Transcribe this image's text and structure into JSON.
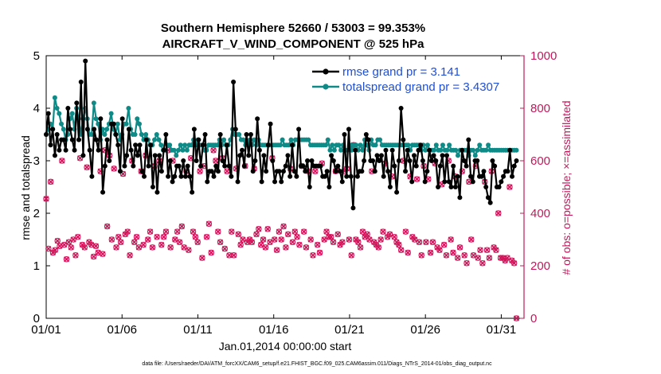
{
  "chart_data": {
    "type": "line",
    "title": "Southern Hemisphere 52660 / 53003 = 99.353%",
    "subtitle": "AIRCRAFT_V_WIND_COMPONENT @ 525 hPa",
    "xlabel": "Jan.01,2014 00:00:00 start",
    "ylabel_left": "rmse and totalspread",
    "ylabel_right": "# of obs: o=possible; ×=assimilated",
    "footnote": "data file: /Users/raeder/DAI/ATM_forcXX/CAM6_setup/f.e21.FHIST_BGC.f09_025.CAM6assim.011/Diags_NTrS_2014-01/obs_diag_output.nc",
    "x_range": [
      1,
      32.5
    ],
    "x_ticks": [
      1,
      6,
      11,
      16,
      21,
      26,
      31
    ],
    "x_tick_labels": [
      "01/01",
      "01/06",
      "01/11",
      "01/16",
      "01/21",
      "01/26",
      "01/31"
    ],
    "ylim_left": [
      0,
      5
    ],
    "left_ticks": [
      "0",
      "1",
      "2",
      "3",
      "4",
      "5"
    ],
    "ylim_right": [
      0,
      1000
    ],
    "right_ticks": [
      "0",
      "200",
      "400",
      "600",
      "800",
      "1000"
    ],
    "legend": [
      "rmse grand pr = 3.141",
      "totalspread grand pr = 3.4307"
    ],
    "colors": {
      "rmse": "#000000",
      "spread": "#0e8a87",
      "obs": "#d4145a",
      "legend_text": "#1f4fd6",
      "right_axis": "#c2185b"
    },
    "series": [
      {
        "name": "rmse",
        "values": [
          3.5,
          3.9,
          3.3,
          3.6,
          3.1,
          3.5,
          3.2,
          3.4,
          3.4,
          3.2,
          4.0,
          3.6,
          3.4,
          3.2,
          4.1,
          3.4,
          4.5,
          3.1,
          4.9,
          3.6,
          3.2,
          2.7,
          3.6,
          3.4,
          3.2,
          3.8,
          2.4,
          2.9,
          3.4,
          3.0,
          3.7,
          3.7,
          3.5,
          3.3,
          2.8,
          3.8,
          2.9,
          3.1,
          3.6,
          3.2,
          2.9,
          3.3,
          3.1,
          3.3,
          2.8,
          2.7,
          3.4,
          2.9,
          3.3,
          2.5,
          3.1,
          2.4,
          3.1,
          2.8,
          3.2,
          3.5,
          2.7,
          3.0,
          2.6,
          2.7,
          2.9,
          2.9,
          2.7,
          3.0,
          2.7,
          2.9,
          2.7,
          2.4,
          3.6,
          3.0,
          3.4,
          2.9,
          3.3,
          3.5,
          2.6,
          2.8,
          2.8,
          2.7,
          2.9,
          2.8,
          3.5,
          3.0,
          2.9,
          3.3,
          2.9,
          2.7,
          4.5,
          3.6,
          2.6,
          3.1,
          3.2,
          2.9,
          3.5,
          3.1,
          3.5,
          2.8,
          3.0,
          3.8,
          3.2,
          2.6,
          3.1,
          2.8,
          3.3,
          3.7,
          3.0,
          2.6,
          2.8,
          2.8,
          2.6,
          2.8,
          2.9,
          3.1,
          2.7,
          3.3,
          2.8,
          2.7,
          3.6,
          2.9,
          2.9,
          2.8,
          3.0,
          2.5,
          3.0,
          2.9,
          2.9,
          2.9,
          2.9,
          2.7,
          2.7,
          2.8,
          2.5,
          3.1,
          3.0,
          2.8,
          2.9,
          2.8,
          2.6,
          3.5,
          2.7,
          3.6,
          2.7,
          2.1,
          3.2,
          2.7,
          2.8,
          2.8,
          3.0,
          3.5,
          3.4,
          3.0,
          3.0,
          2.8,
          3.1,
          3.0,
          3.1,
          2.7,
          3.2,
          2.8,
          2.5,
          3.2,
          2.9,
          2.4,
          3.0,
          4.0,
          3.4,
          2.8,
          3.2,
          3.0,
          2.6,
          3.1,
          2.9,
          3.2,
          3.3,
          3.0,
          2.6,
          2.8,
          3.2,
          3.0,
          3.1,
          3.0,
          2.5,
          2.9,
          3.1,
          2.6,
          3.1,
          2.6,
          2.5,
          2.9,
          2.5,
          2.7,
          2.3,
          3.2,
          3.0,
          2.9,
          3.4,
          2.7,
          2.6,
          3.0,
          3.0,
          2.7,
          2.7,
          2.8,
          2.5,
          2.3,
          2.2,
          3.0,
          2.9,
          2.5,
          2.5,
          2.6,
          2.7,
          2.8,
          2.8,
          3.2,
          2.7,
          2.9,
          3.0
        ]
      },
      {
        "name": "totalspread",
        "values": [
          3.5,
          3.6,
          3.7,
          3.6,
          4.2,
          4.0,
          3.9,
          3.7,
          3.6,
          3.4,
          3.5,
          3.8,
          3.9,
          3.6,
          4.0,
          3.8,
          3.5,
          3.8,
          4.0,
          3.8,
          3.5,
          3.5,
          4.1,
          3.8,
          3.7,
          3.4,
          3.6,
          3.5,
          3.6,
          3.7,
          3.9,
          3.6,
          3.5,
          3.7,
          3.4,
          3.5,
          3.7,
          3.7,
          4.0,
          3.6,
          3.5,
          3.5,
          3.8,
          3.7,
          3.5,
          3.4,
          3.5,
          3.4,
          3.3,
          3.3,
          3.4,
          3.5,
          3.4,
          3.3,
          3.2,
          3.2,
          3.3,
          3.3,
          3.2,
          3.2,
          3.1,
          3.2,
          3.3,
          3.2,
          3.3,
          3.2,
          3.3,
          3.3,
          3.4,
          3.3,
          3.4,
          3.3,
          3.3,
          3.2,
          3.2,
          3.3,
          3.3,
          3.3,
          3.3,
          3.3,
          3.4,
          3.3,
          3.4,
          3.3,
          3.3,
          3.4,
          3.6,
          3.5,
          3.5,
          3.5,
          3.4,
          3.4,
          3.3,
          3.3,
          3.4,
          3.3,
          3.4,
          3.3,
          3.4,
          3.3,
          3.3,
          3.3,
          3.3,
          3.3,
          3.3,
          3.3,
          3.3,
          3.3,
          3.3,
          3.4,
          3.3,
          3.3,
          3.3,
          3.4,
          3.3,
          3.4,
          3.4,
          3.4,
          3.4,
          3.4,
          3.4,
          3.4,
          3.3,
          3.3,
          3.3,
          3.3,
          3.3,
          3.3,
          3.3,
          3.3,
          3.4,
          3.2,
          3.3,
          3.2,
          3.3,
          3.3,
          3.2,
          3.3,
          3.2,
          3.2,
          3.3,
          3.2,
          3.3,
          3.3,
          3.2,
          3.3,
          3.2,
          3.4,
          3.3,
          3.2,
          3.4,
          3.3,
          3.3,
          3.4,
          3.4,
          3.3,
          3.3,
          3.3,
          3.3,
          3.3,
          3.3,
          3.3,
          3.3,
          3.3,
          3.3,
          3.3,
          3.3,
          3.3,
          3.2,
          3.3,
          3.3,
          3.3,
          3.3,
          3.2,
          3.3,
          3.2,
          3.3,
          3.2,
          3.2,
          3.2,
          3.3,
          3.2,
          3.2,
          3.3,
          3.2,
          3.2,
          3.3,
          3.2,
          3.2,
          3.2,
          3.1,
          3.2,
          3.2,
          3.2,
          3.2,
          3.1,
          3.2,
          3.2,
          3.1,
          3.2,
          3.3,
          3.2,
          3.2,
          3.2,
          3.3,
          3.2,
          3.2,
          3.2,
          3.2,
          3.2,
          3.2,
          3.2,
          3.2,
          3.2,
          3.2,
          3.2,
          3.2,
          3.2
        ]
      },
      {
        "name": "obs_assimilated",
        "values": [
          455,
          265,
          520,
          250,
          260,
          295,
          275,
          600,
          280,
          225,
          290,
          270,
          300,
          240,
          310,
          610,
          280,
          270,
          575,
          290,
          280,
          235,
          275,
          250,
          560,
          245,
          640,
          350,
          620,
          300,
          570,
          270,
          310,
          290,
          550,
          320,
          330,
          240,
          600,
          290,
          310,
          270,
          560,
          280,
          620,
          300,
          330,
          270,
          580,
          310,
          600,
          280,
          310,
          330,
          640,
          270,
          600,
          300,
          330,
          290,
          350,
          270,
          560,
          260,
          610,
          330,
          310,
          290,
          560,
          230,
          580,
          310,
          360,
          250,
          640,
          600,
          330,
          290,
          610,
          265,
          560,
          240,
          330,
          240,
          570,
          320,
          280,
          300,
          580,
          290,
          300,
          290,
          570,
          320,
          340,
          280,
          300,
          270,
          340,
          290,
          610,
          300,
          260,
          330,
          300,
          350,
          270,
          320,
          570,
          290,
          330,
          310,
          280,
          580,
          330,
          270,
          560,
          300,
          240,
          560,
          280,
          250,
          590,
          300,
          330,
          310,
          310,
          290,
          560,
          320,
          280,
          290,
          560,
          570,
          300,
          240,
          660,
          300,
          290,
          270,
          330,
          310,
          320,
          300,
          560,
          290,
          280,
          270,
          300,
          330,
          590,
          310,
          320,
          540,
          310,
          290,
          280,
          260,
          600,
          330,
          250,
          540,
          310,
          300,
          530,
          290,
          240,
          580,
          290,
          530,
          250,
          290,
          590,
          270,
          260,
          510,
          280,
          240,
          600,
          300,
          250,
          540,
          230,
          270,
          560,
          240,
          210,
          520,
          300,
          240,
          580,
          230,
          260,
          210,
          520,
          260,
          230,
          560,
          270,
          260,
          400,
          230,
          230,
          220,
          230,
          500,
          220,
          210,
          0
        ]
      }
    ]
  }
}
